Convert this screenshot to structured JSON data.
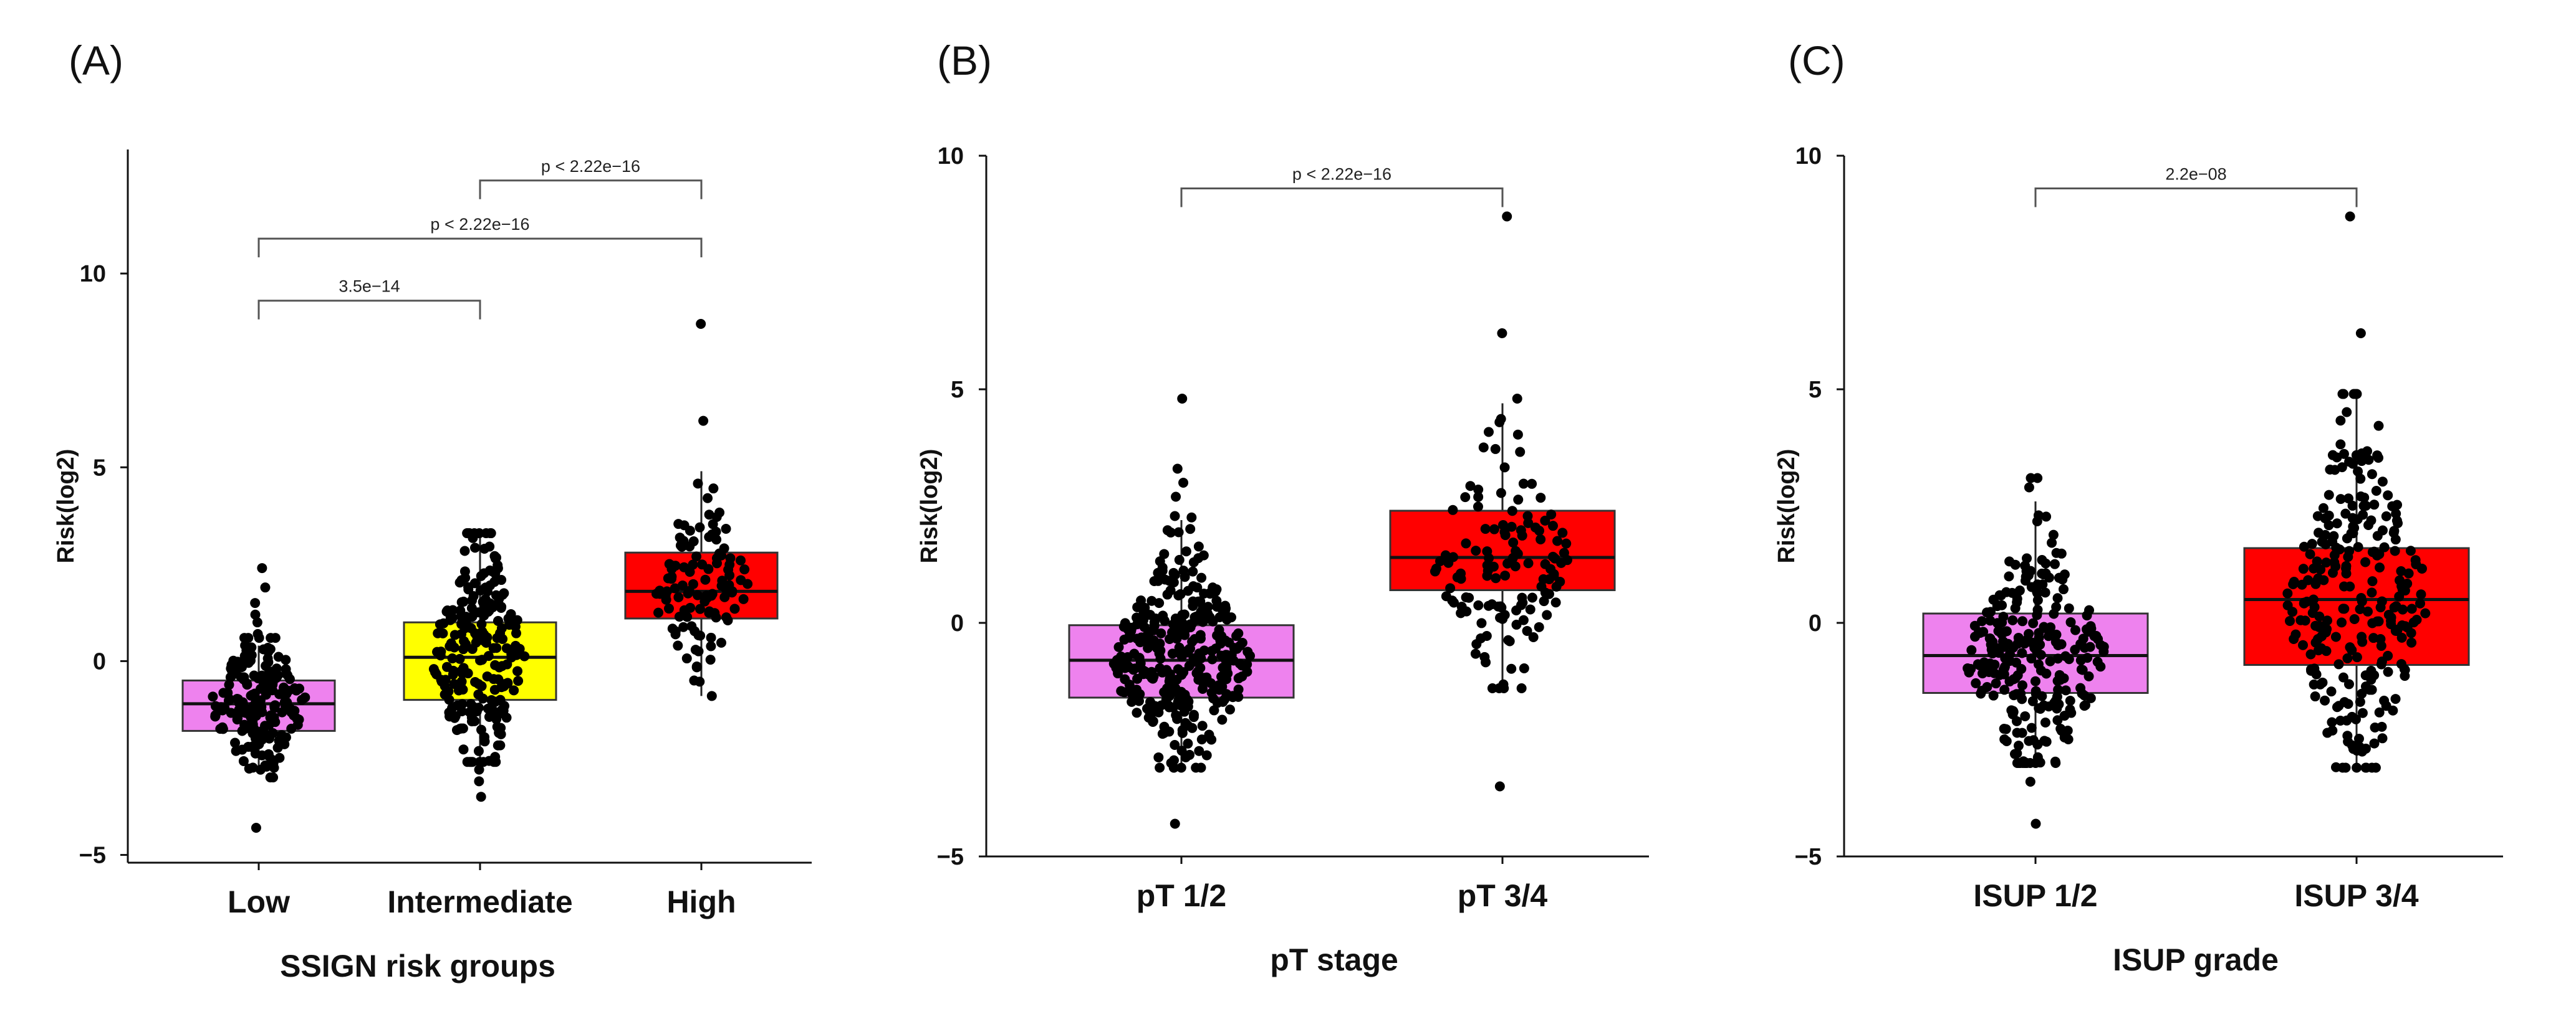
{
  "colors": {
    "low_group": "#ee82ee",
    "intermediate_group": "#ffff00",
    "high_group": "#ff0000",
    "points": "#000000"
  },
  "chart_data": [
    {
      "type": "box",
      "panel_label": "(A)",
      "xlabel": "SSIGN risk groups",
      "ylabel": "Risk(log2)",
      "ylim": [
        -5.2,
        13.2
      ],
      "yticks": [
        -5,
        0,
        5,
        10
      ],
      "categories": [
        "Low",
        "Intermediate",
        "High"
      ],
      "box_colors": [
        "#ee82ee",
        "#ffff00",
        "#ff0000"
      ],
      "boxes": [
        {
          "q1": -1.8,
          "median": -1.1,
          "q3": -0.5,
          "whisker_low": -2.9,
          "whisker_high": 0.4,
          "outliers_high": [
            0.7,
            1.0,
            1.2,
            1.5,
            1.9,
            2.4
          ],
          "outliers_low": [
            -4.3
          ],
          "spread_min": -3.0,
          "spread_max": 0.6,
          "n": 190
        },
        {
          "q1": -1.0,
          "median": 0.1,
          "q3": 1.0,
          "whisker_low": -2.5,
          "whisker_high": 3.3,
          "outliers_high": [],
          "outliers_low": [
            -2.8,
            -3.1,
            -3.5
          ],
          "spread_min": -2.6,
          "spread_max": 3.3,
          "n": 230
        },
        {
          "q1": 1.1,
          "median": 1.8,
          "q3": 2.8,
          "whisker_low": -0.9,
          "whisker_high": 4.9,
          "outliers_high": [
            6.2,
            8.7
          ],
          "outliers_low": [],
          "spread_min": -0.9,
          "spread_max": 4.9,
          "n": 110
        }
      ],
      "comparisons": [
        {
          "from": 0,
          "to": 1,
          "label": "3.5e−14",
          "y": 9.3
        },
        {
          "from": 0,
          "to": 2,
          "label": "p < 2.22e−16",
          "y": 10.9
        },
        {
          "from": 1,
          "to": 2,
          "label": "p < 2.22e−16",
          "y": 12.4
        }
      ]
    },
    {
      "type": "box",
      "panel_label": "(B)",
      "xlabel": "pT stage",
      "ylabel": "Risk(log2)",
      "ylim": [
        -5.0,
        10.0
      ],
      "yticks": [
        -5,
        0,
        5,
        10
      ],
      "categories": [
        "pT 1/2",
        "pT 3/4"
      ],
      "box_colors": [
        "#ee82ee",
        "#ff0000"
      ],
      "boxes": [
        {
          "q1": -1.6,
          "median": -0.8,
          "q3": -0.05,
          "whisker_low": -3.1,
          "whisker_high": 2.2,
          "outliers_high": [
            2.7,
            3.0,
            3.3,
            4.8
          ],
          "outliers_low": [
            -4.3
          ],
          "spread_min": -3.1,
          "spread_max": 3.3,
          "n": 330
        },
        {
          "q1": 0.7,
          "median": 1.4,
          "q3": 2.4,
          "whisker_low": -1.4,
          "whisker_high": 4.7,
          "outliers_high": [
            6.2,
            8.7
          ],
          "outliers_low": [
            -3.5
          ],
          "spread_min": -1.4,
          "spread_max": 4.8,
          "n": 130
        }
      ],
      "comparisons": [
        {
          "from": 0,
          "to": 1,
          "label": "p < 2.22e−16",
          "y": 9.3
        }
      ]
    },
    {
      "type": "box",
      "panel_label": "(C)",
      "xlabel": "ISUP grade",
      "ylabel": "Risk(log2)",
      "ylim": [
        -5.0,
        10.0
      ],
      "yticks": [
        -5,
        0,
        5,
        10
      ],
      "categories": [
        "ISUP 1/2",
        "ISUP 3/4"
      ],
      "box_colors": [
        "#ee82ee",
        "#ff0000"
      ],
      "boxes": [
        {
          "q1": -1.5,
          "median": -0.7,
          "q3": 0.2,
          "whisker_low": -3.0,
          "whisker_high": 2.6,
          "outliers_high": [
            2.9,
            3.1
          ],
          "outliers_low": [
            -3.4,
            -4.3
          ],
          "spread_min": -3.0,
          "spread_max": 3.1,
          "n": 260
        },
        {
          "q1": -0.9,
          "median": 0.5,
          "q3": 1.6,
          "whisker_low": -3.1,
          "whisker_high": 4.9,
          "outliers_high": [
            6.2,
            8.7
          ],
          "outliers_low": [],
          "spread_min": -3.1,
          "spread_max": 4.9,
          "n": 270
        }
      ],
      "comparisons": [
        {
          "from": 0,
          "to": 1,
          "label": "2.2e−08",
          "y": 9.3
        }
      ]
    }
  ]
}
